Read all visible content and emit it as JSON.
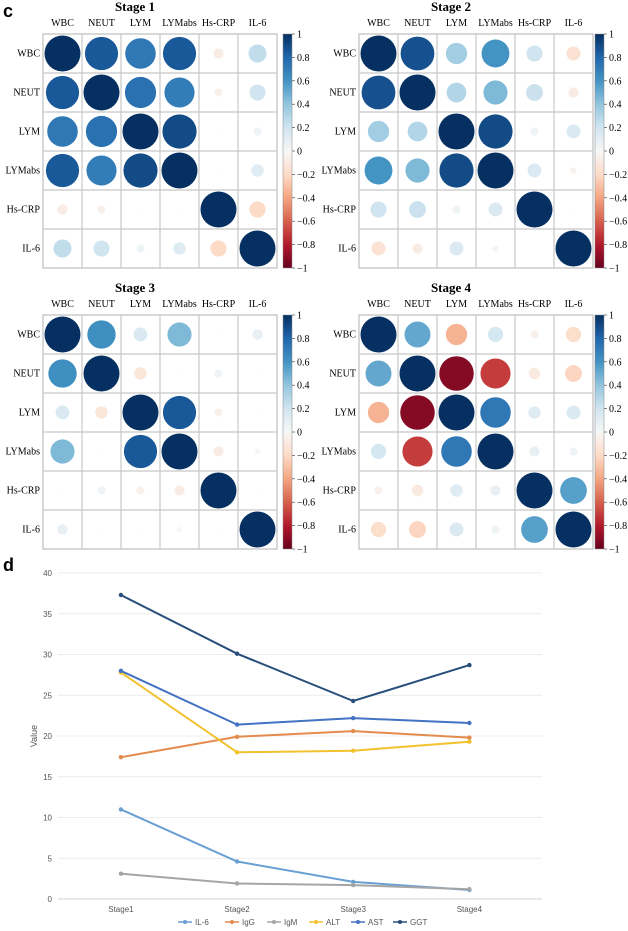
{
  "panel_c_label": "c",
  "panel_d_label": "d",
  "chart_data": [
    {
      "type": "heatmap",
      "title": "Stage 1",
      "variables": [
        "WBC",
        "NEUT",
        "LYM",
        "LYMabs",
        "Hs-CRP",
        "IL-6"
      ],
      "values": [
        [
          1.0,
          0.85,
          0.72,
          0.85,
          -0.08,
          0.25
        ],
        [
          0.85,
          1.0,
          0.75,
          0.7,
          -0.05,
          0.2
        ],
        [
          0.72,
          0.75,
          1.0,
          0.9,
          0.0,
          0.05
        ],
        [
          0.85,
          0.7,
          0.9,
          1.0,
          0.0,
          0.12
        ],
        [
          -0.08,
          -0.05,
          0.0,
          0.0,
          1.0,
          -0.2
        ],
        [
          0.25,
          0.2,
          0.05,
          0.12,
          -0.2,
          1.0
        ]
      ],
      "colorbar_ticks": [
        "1",
        "0.8",
        "0.6",
        "0.4",
        "0.2",
        "0",
        "−0.2",
        "−0.4",
        "−0.6",
        "−0.8",
        "−1"
      ]
    },
    {
      "type": "heatmap",
      "title": "Stage 2",
      "variables": [
        "WBC",
        "NEUT",
        "LYM",
        "LYMabs",
        "Hs-CRP",
        "IL-6"
      ],
      "values": [
        [
          1.0,
          0.88,
          0.35,
          0.6,
          0.2,
          -0.15
        ],
        [
          0.88,
          1.0,
          0.3,
          0.45,
          0.22,
          -0.08
        ],
        [
          0.35,
          0.3,
          1.0,
          0.9,
          0.05,
          0.15
        ],
        [
          0.6,
          0.45,
          0.9,
          1.0,
          0.15,
          -0.03
        ],
        [
          0.2,
          0.22,
          0.05,
          0.15,
          1.0,
          0.0
        ],
        [
          -0.15,
          -0.08,
          0.15,
          -0.03,
          0.0,
          1.0
        ]
      ],
      "colorbar_ticks": [
        "1",
        "0.8",
        "0.6",
        "0.4",
        "0.2",
        "0",
        "−0.2",
        "−0.4",
        "−0.6",
        "−0.8",
        "−1"
      ]
    },
    {
      "type": "heatmap",
      "title": "Stage 3",
      "variables": [
        "WBC",
        "NEUT",
        "LYM",
        "LYMabs",
        "Hs-CRP",
        "IL-6"
      ],
      "values": [
        [
          1.0,
          0.62,
          0.15,
          0.45,
          0.0,
          0.08
        ],
        [
          0.62,
          1.0,
          -0.12,
          0.0,
          0.05,
          0.0
        ],
        [
          0.15,
          -0.12,
          1.0,
          0.85,
          -0.05,
          0.0
        ],
        [
          0.45,
          0.0,
          0.85,
          1.0,
          -0.08,
          0.02
        ],
        [
          0.0,
          0.05,
          -0.05,
          -0.08,
          1.0,
          0.0
        ],
        [
          0.08,
          0.0,
          0.0,
          0.02,
          0.0,
          1.0
        ]
      ],
      "colorbar_ticks": [
        "1",
        "0.8",
        "0.6",
        "0.4",
        "0.2",
        "0",
        "−0.2",
        "−0.4",
        "−0.6",
        "−0.8",
        "−1"
      ]
    },
    {
      "type": "heatmap",
      "title": "Stage 4",
      "variables": [
        "WBC",
        "NEUT",
        "LYM",
        "LYMabs",
        "Hs-CRP",
        "IL-6"
      ],
      "values": [
        [
          1.0,
          0.52,
          -0.35,
          0.18,
          -0.05,
          -0.18
        ],
        [
          0.52,
          1.0,
          -0.92,
          -0.7,
          -0.1,
          -0.22
        ],
        [
          -0.35,
          -0.92,
          1.0,
          0.72,
          0.12,
          0.15
        ],
        [
          0.18,
          -0.7,
          0.72,
          1.0,
          0.08,
          0.05
        ],
        [
          -0.05,
          -0.1,
          0.12,
          0.08,
          1.0,
          0.55
        ],
        [
          -0.18,
          -0.22,
          0.15,
          0.05,
          0.55,
          1.0
        ]
      ],
      "colorbar_ticks": [
        "1",
        "0.8",
        "0.6",
        "0.4",
        "0.2",
        "0",
        "−0.2",
        "−0.4",
        "−0.6",
        "−0.8",
        "−1"
      ]
    },
    {
      "type": "line",
      "title": "",
      "xlabel": "",
      "ylabel": "Value",
      "categories": [
        "Stage1",
        "Stage2",
        "Stage3",
        "Stage4"
      ],
      "ylim": [
        0,
        40
      ],
      "yticks": [
        "0",
        "5",
        "10",
        "15",
        "20",
        "25",
        "30",
        "35",
        "40"
      ],
      "grid": true,
      "legend_position": "bottom",
      "series": [
        {
          "name": "IL-6",
          "color": "#6a9fd4",
          "values": [
            11.0,
            4.6,
            2.1,
            1.1
          ]
        },
        {
          "name": "IgG",
          "color": "#e38b4d",
          "values": [
            17.4,
            19.9,
            20.6,
            19.8
          ]
        },
        {
          "name": "IgM",
          "color": "#a5a5a5",
          "values": [
            3.1,
            1.9,
            1.7,
            1.2
          ]
        },
        {
          "name": "ALT",
          "color": "#f2c12e",
          "values": [
            27.8,
            18.0,
            18.2,
            19.3
          ]
        },
        {
          "name": "AST",
          "color": "#4472c4",
          "values": [
            28.0,
            21.4,
            22.2,
            21.6
          ]
        },
        {
          "name": "GGT",
          "color": "#284e7a",
          "values": [
            37.3,
            30.1,
            24.3,
            28.7
          ]
        }
      ]
    }
  ]
}
